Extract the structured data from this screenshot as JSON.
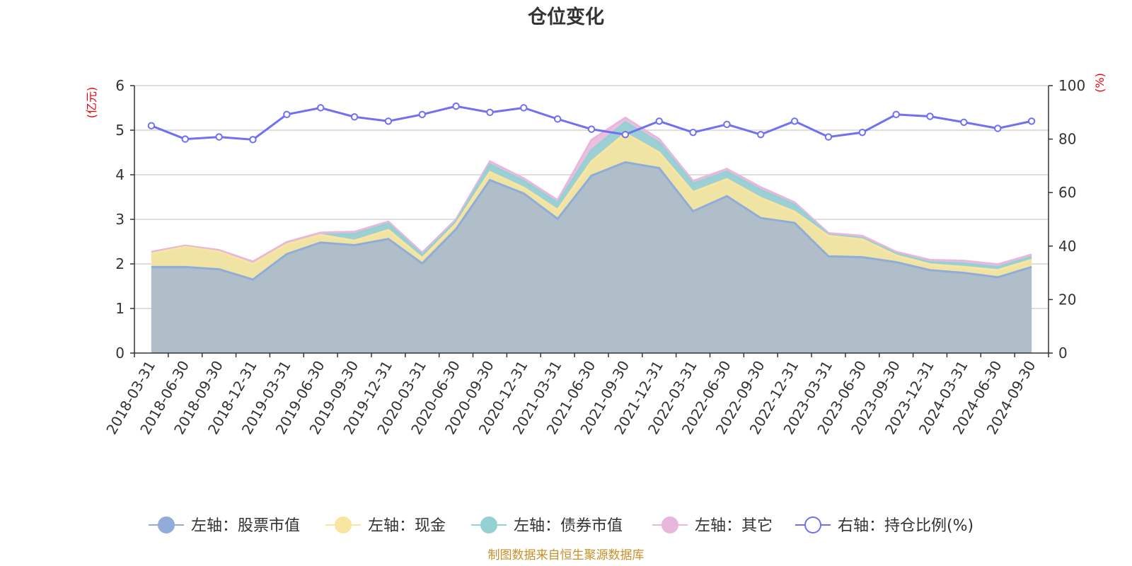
{
  "chart_data": {
    "type": "area",
    "title": "仓位变化",
    "left_axis": {
      "unit": "(亿元)",
      "ylim": [
        0,
        6
      ],
      "ticks": [
        "0",
        "1",
        "2",
        "3",
        "4",
        "5",
        "6"
      ]
    },
    "right_axis": {
      "unit": "(%)",
      "ylim": [
        0,
        100
      ],
      "ticks": [
        "0",
        "20",
        "40",
        "60",
        "80",
        "100"
      ]
    },
    "categories": [
      "2018-03-31",
      "2018-06-30",
      "2018-09-30",
      "2018-12-31",
      "2019-03-31",
      "2019-06-30",
      "2019-09-30",
      "2019-12-31",
      "2020-03-31",
      "2020-06-30",
      "2020-09-30",
      "2020-12-31",
      "2021-03-31",
      "2021-06-30",
      "2021-09-30",
      "2021-12-31",
      "2022-03-31",
      "2022-06-30",
      "2022-09-30",
      "2022-12-31",
      "2023-03-31",
      "2023-06-30",
      "2023-09-30",
      "2023-12-31",
      "2024-03-31",
      "2024-06-30",
      "2024-09-30"
    ],
    "stacked_series": [
      {
        "name": "左轴：股票市值",
        "axis": "left",
        "color": "#91acd9",
        "values": [
          1.93,
          1.93,
          1.88,
          1.65,
          2.22,
          2.48,
          2.42,
          2.56,
          2.01,
          2.78,
          3.88,
          3.58,
          3.01,
          3.98,
          4.28,
          4.15,
          3.18,
          3.52,
          3.03,
          2.92,
          2.17,
          2.15,
          2.04,
          1.86,
          1.8,
          1.7,
          1.93
        ]
      },
      {
        "name": "左轴：现金",
        "axis": "left",
        "color": "#f9e5a0",
        "values": [
          0.3,
          0.45,
          0.39,
          0.35,
          0.22,
          0.17,
          0.1,
          0.2,
          0.12,
          0.12,
          0.18,
          0.13,
          0.2,
          0.32,
          0.65,
          0.35,
          0.43,
          0.38,
          0.45,
          0.25,
          0.46,
          0.4,
          0.15,
          0.13,
          0.13,
          0.16,
          0.16
        ]
      },
      {
        "name": "左轴：债券市值",
        "axis": "left",
        "color": "#93d1d3",
        "values": [
          0.0,
          0.0,
          0.0,
          0.0,
          0.0,
          0.0,
          0.15,
          0.14,
          0.07,
          0.05,
          0.17,
          0.15,
          0.16,
          0.25,
          0.25,
          0.22,
          0.19,
          0.17,
          0.18,
          0.16,
          0.02,
          0.03,
          0.04,
          0.05,
          0.08,
          0.07,
          0.07
        ]
      },
      {
        "name": "左轴：其它",
        "axis": "left",
        "color": "#e8b8dc",
        "values": [
          0.04,
          0.03,
          0.04,
          0.05,
          0.05,
          0.05,
          0.05,
          0.05,
          0.05,
          0.05,
          0.07,
          0.06,
          0.06,
          0.23,
          0.1,
          0.08,
          0.06,
          0.06,
          0.06,
          0.05,
          0.04,
          0.05,
          0.04,
          0.05,
          0.06,
          0.06,
          0.05
        ]
      }
    ],
    "line_series": [
      {
        "name": "右轴：持仓比例(%)",
        "axis": "right",
        "color": "#6f70f2",
        "values": [
          85.0,
          80.0,
          80.8,
          79.8,
          89.2,
          91.7,
          88.3,
          86.7,
          89.2,
          92.3,
          90.0,
          91.7,
          87.5,
          83.7,
          81.7,
          86.7,
          82.5,
          85.5,
          81.7,
          86.7,
          80.8,
          82.5,
          89.2,
          88.5,
          86.3,
          84.0,
          86.7
        ]
      }
    ],
    "grid": true,
    "legend_position": "bottom"
  },
  "source_note": "制图数据来自恒生聚源数据库"
}
